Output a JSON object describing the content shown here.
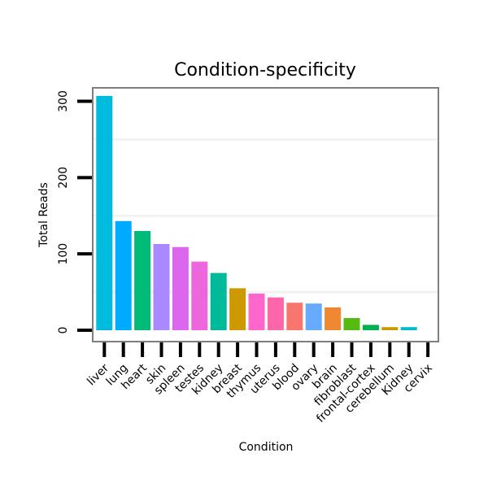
{
  "chart_data": {
    "type": "bar",
    "title": "Condition-specificity",
    "xlabel": "Condition",
    "ylabel": "Total Reads",
    "ylim": [
      0,
      320
    ],
    "yticks": [
      0,
      100,
      200,
      300
    ],
    "grid": true,
    "categories": [
      "liver",
      "lung",
      "heart",
      "skin",
      "spleen",
      "testes",
      "kidney",
      "breast",
      "thymus",
      "uterus",
      "blood",
      "ovary",
      "brain",
      "fibroblast",
      "frontal-cortex",
      "cerebellum",
      "Kidney",
      "cervix"
    ],
    "values": [
      307,
      143,
      130,
      113,
      109,
      90,
      75,
      55,
      48,
      43,
      36,
      35,
      30,
      16,
      7,
      4,
      4,
      0
    ],
    "colors": [
      "#00BBDD",
      "#00AAFF",
      "#00BB77",
      "#AA88FF",
      "#DD66EE",
      "#EE66DD",
      "#00BB99",
      "#CC9900",
      "#FF66CC",
      "#FF66AA",
      "#F8766D",
      "#66AAFF",
      "#EE8833",
      "#55BB11",
      "#00B050",
      "#CC9900",
      "#00BBCC",
      "#00BBDD"
    ]
  }
}
